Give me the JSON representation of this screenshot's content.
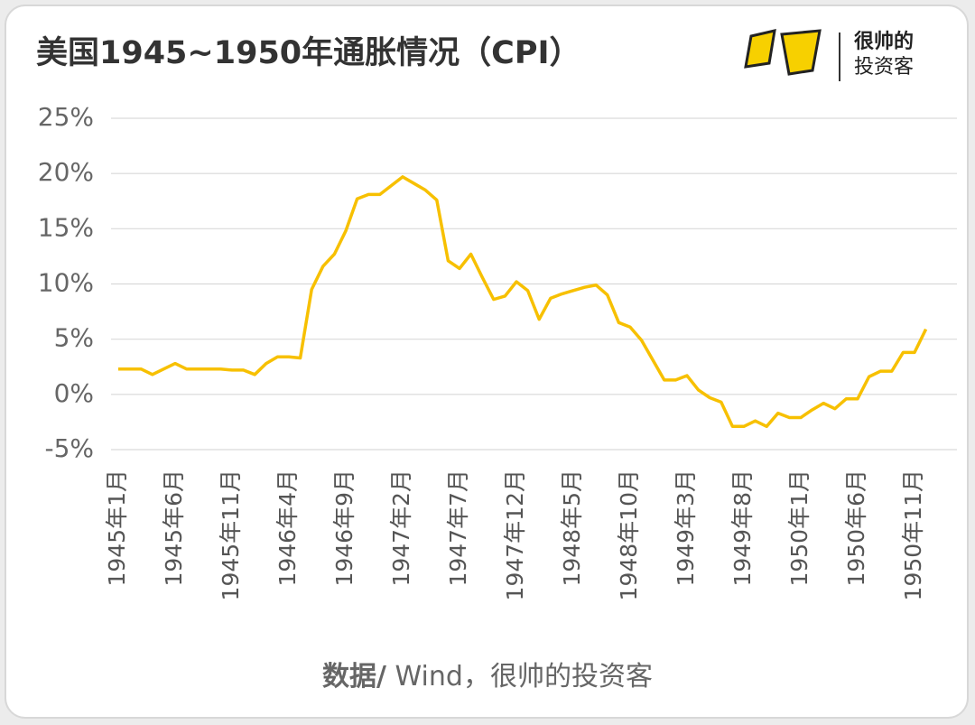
{
  "chart_data": {
    "type": "line",
    "title": "美国1945~1950年通胀情况（CPI）",
    "source_label": "数据/",
    "source": " Wind，很帅的投资客",
    "brand": [
      "很帅的",
      "投资客"
    ],
    "categories": [
      "1945年1月",
      null,
      null,
      null,
      null,
      "1945年6月",
      null,
      null,
      null,
      null,
      "1945年11月",
      null,
      null,
      null,
      null,
      "1946年4月",
      null,
      null,
      null,
      null,
      "1946年9月",
      null,
      null,
      null,
      null,
      "1947年2月",
      null,
      null,
      null,
      null,
      "1947年7月",
      null,
      null,
      null,
      null,
      "1947年12月",
      null,
      null,
      null,
      null,
      "1948年5月",
      null,
      null,
      null,
      null,
      "1948年10月",
      null,
      null,
      null,
      null,
      "1949年3月",
      null,
      null,
      null,
      null,
      "1949年8月",
      null,
      null,
      null,
      null,
      "1950年1月",
      null,
      null,
      null,
      null,
      "1950年6月",
      null,
      null,
      null,
      null,
      "1950年11月",
      null
    ],
    "series": [
      {
        "name": "CPI",
        "color": "#f7c000",
        "values": [
          2.3,
          2.3,
          2.3,
          1.8,
          2.3,
          2.8,
          2.3,
          2.3,
          2.3,
          2.3,
          2.2,
          2.2,
          1.8,
          2.8,
          3.4,
          3.4,
          3.3,
          9.5,
          11.6,
          12.7,
          14.8,
          17.7,
          18.1,
          18.1,
          18.9,
          19.7,
          19.1,
          18.5,
          17.6,
          12.1,
          11.4,
          12.7,
          10.6,
          8.6,
          8.9,
          10.2,
          9.4,
          6.8,
          8.7,
          9.1,
          9.4,
          9.7,
          9.9,
          9.0,
          6.5,
          6.1,
          4.9,
          3.1,
          1.3,
          1.3,
          1.7,
          0.4,
          -0.3,
          -0.7,
          -2.9,
          -2.9,
          -2.4,
          -2.9,
          -1.7,
          -2.1,
          -2.1,
          -1.4,
          -0.8,
          -1.3,
          -0.4,
          -0.4,
          1.6,
          2.1,
          2.1,
          3.8,
          3.8,
          5.9
        ]
      }
    ],
    "ylim": [
      -5,
      25
    ],
    "yticks": [
      {
        "value": -5,
        "label": "-5%"
      },
      {
        "value": 0,
        "label": "0%"
      },
      {
        "value": 5,
        "label": "5%"
      },
      {
        "value": 10,
        "label": "10%"
      },
      {
        "value": 15,
        "label": "15%"
      },
      {
        "value": 20,
        "label": "20%"
      },
      {
        "value": 25,
        "label": "25%"
      }
    ],
    "grid": true
  }
}
